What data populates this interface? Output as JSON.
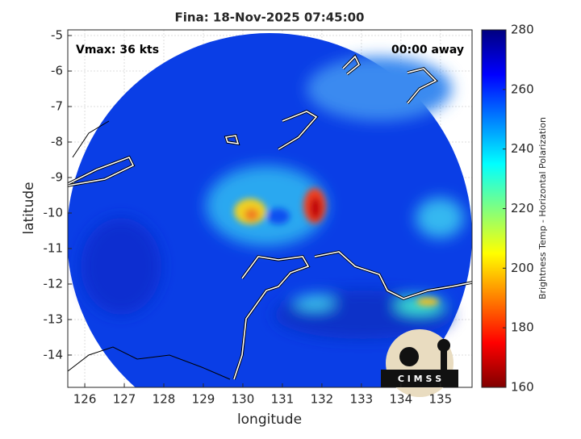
{
  "chart_data": {
    "type": "map",
    "title": "Fina: 18-Nov-2025 07:45:00",
    "annotations": [
      "Vmax: 36 kts",
      "00:00 away"
    ],
    "x_label": "longitude",
    "y_label": "latitude",
    "xlim": [
      125.57,
      135.8
    ],
    "ylim": [
      -14.91,
      -4.84
    ],
    "xticks": [
      126,
      127,
      128,
      129,
      130,
      131,
      132,
      133,
      134,
      135
    ],
    "yticks": [
      -5,
      -6,
      -7,
      -8,
      -9,
      -10,
      -11,
      -12,
      -13,
      -14
    ],
    "grid": true,
    "colorbar": {
      "label": "Brightness Temp - Horizontal Polarization",
      "lim": [
        160,
        280
      ],
      "ticks": [
        160,
        180,
        200,
        220,
        240,
        260,
        280
      ],
      "colors": [
        "#800000",
        "#ff0000",
        "#ff8000",
        "#ffff00",
        "#80ff80",
        "#00ffff",
        "#0080ff",
        "#0000ff",
        "#000080"
      ]
    }
  },
  "logo": "C I M S S"
}
